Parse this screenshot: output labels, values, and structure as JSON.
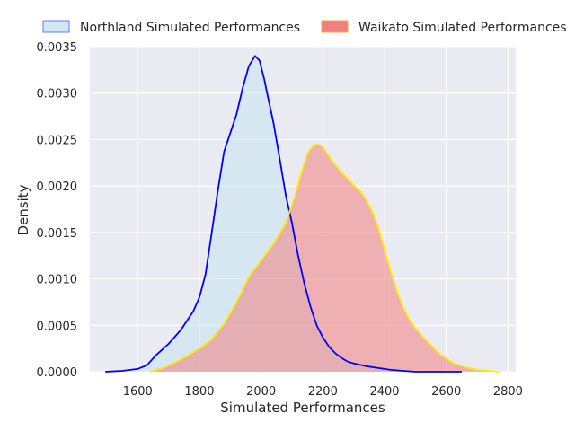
{
  "chart_data": {
    "type": "area",
    "xlabel": "Simulated Performances",
    "ylabel": "Density",
    "xlim": [
      1445,
      2825
    ],
    "ylim": [
      0,
      0.0035
    ],
    "x_ticks": [
      1600,
      1800,
      2000,
      2200,
      2400,
      2600,
      2800
    ],
    "y_ticks": [
      0.0,
      0.0005,
      0.001,
      0.0015,
      0.002,
      0.0025,
      0.003,
      0.0035
    ],
    "x_tick_labels": [
      "1600",
      "1800",
      "2000",
      "2200",
      "2400",
      "2600",
      "2800"
    ],
    "y_tick_labels": [
      "0.0000",
      "0.0005",
      "0.0010",
      "0.0015",
      "0.0020",
      "0.0025",
      "0.0030",
      "0.0035"
    ],
    "grid": true,
    "legend_position": "top",
    "series": [
      {
        "name": "Northland Simulated Performances",
        "fill": "#c7e4f3",
        "line": "#0000ff",
        "x": [
          1495,
          1550,
          1600,
          1630,
          1660,
          1700,
          1740,
          1780,
          1800,
          1820,
          1840,
          1860,
          1880,
          1900,
          1920,
          1940,
          1960,
          1980,
          1995,
          2010,
          2020,
          2040,
          2060,
          2080,
          2100,
          2120,
          2140,
          2160,
          2180,
          2200,
          2220,
          2240,
          2260,
          2280,
          2300,
          2340,
          2380,
          2420,
          2460,
          2500,
          2550,
          2600,
          2650
        ],
        "y": [
          0.0,
          1e-05,
          3e-05,
          7e-05,
          0.00018,
          0.0003,
          0.00045,
          0.00065,
          0.0008,
          0.00105,
          0.0015,
          0.00195,
          0.00237,
          0.00257,
          0.00277,
          0.00305,
          0.00329,
          0.0034,
          0.00335,
          0.00315,
          0.00299,
          0.00268,
          0.0023,
          0.0019,
          0.0016,
          0.00125,
          0.00095,
          0.0007,
          0.0005,
          0.00037,
          0.00027,
          0.0002,
          0.00015,
          0.00011,
          9e-05,
          6e-05,
          4e-05,
          2e-05,
          1e-05,
          0.0,
          0.0,
          0.0,
          0.0
        ]
      },
      {
        "name": "Waikato Simulated Performances",
        "fill": "#f08080",
        "line": "#ffee00",
        "x": [
          1640,
          1680,
          1720,
          1760,
          1800,
          1840,
          1880,
          1920,
          1960,
          2000,
          2040,
          2080,
          2110,
          2130,
          2150,
          2170,
          2185,
          2200,
          2220,
          2240,
          2260,
          2280,
          2300,
          2320,
          2340,
          2360,
          2380,
          2400,
          2420,
          2440,
          2460,
          2480,
          2500,
          2540,
          2580,
          2620,
          2660,
          2700,
          2740,
          2770
        ],
        "y": [
          0.0,
          4e-05,
          0.0001,
          0.00017,
          0.00025,
          0.00035,
          0.00052,
          0.00075,
          0.00102,
          0.0012,
          0.00138,
          0.0016,
          0.0019,
          0.00214,
          0.00235,
          0.00244,
          0.00245,
          0.00242,
          0.00232,
          0.00223,
          0.00215,
          0.00208,
          0.00201,
          0.00195,
          0.00186,
          0.00173,
          0.00155,
          0.00132,
          0.00108,
          0.00087,
          0.0007,
          0.00057,
          0.00047,
          0.00032,
          0.00019,
          0.0001,
          5e-05,
          2e-05,
          1e-05,
          0.0
        ]
      }
    ]
  }
}
